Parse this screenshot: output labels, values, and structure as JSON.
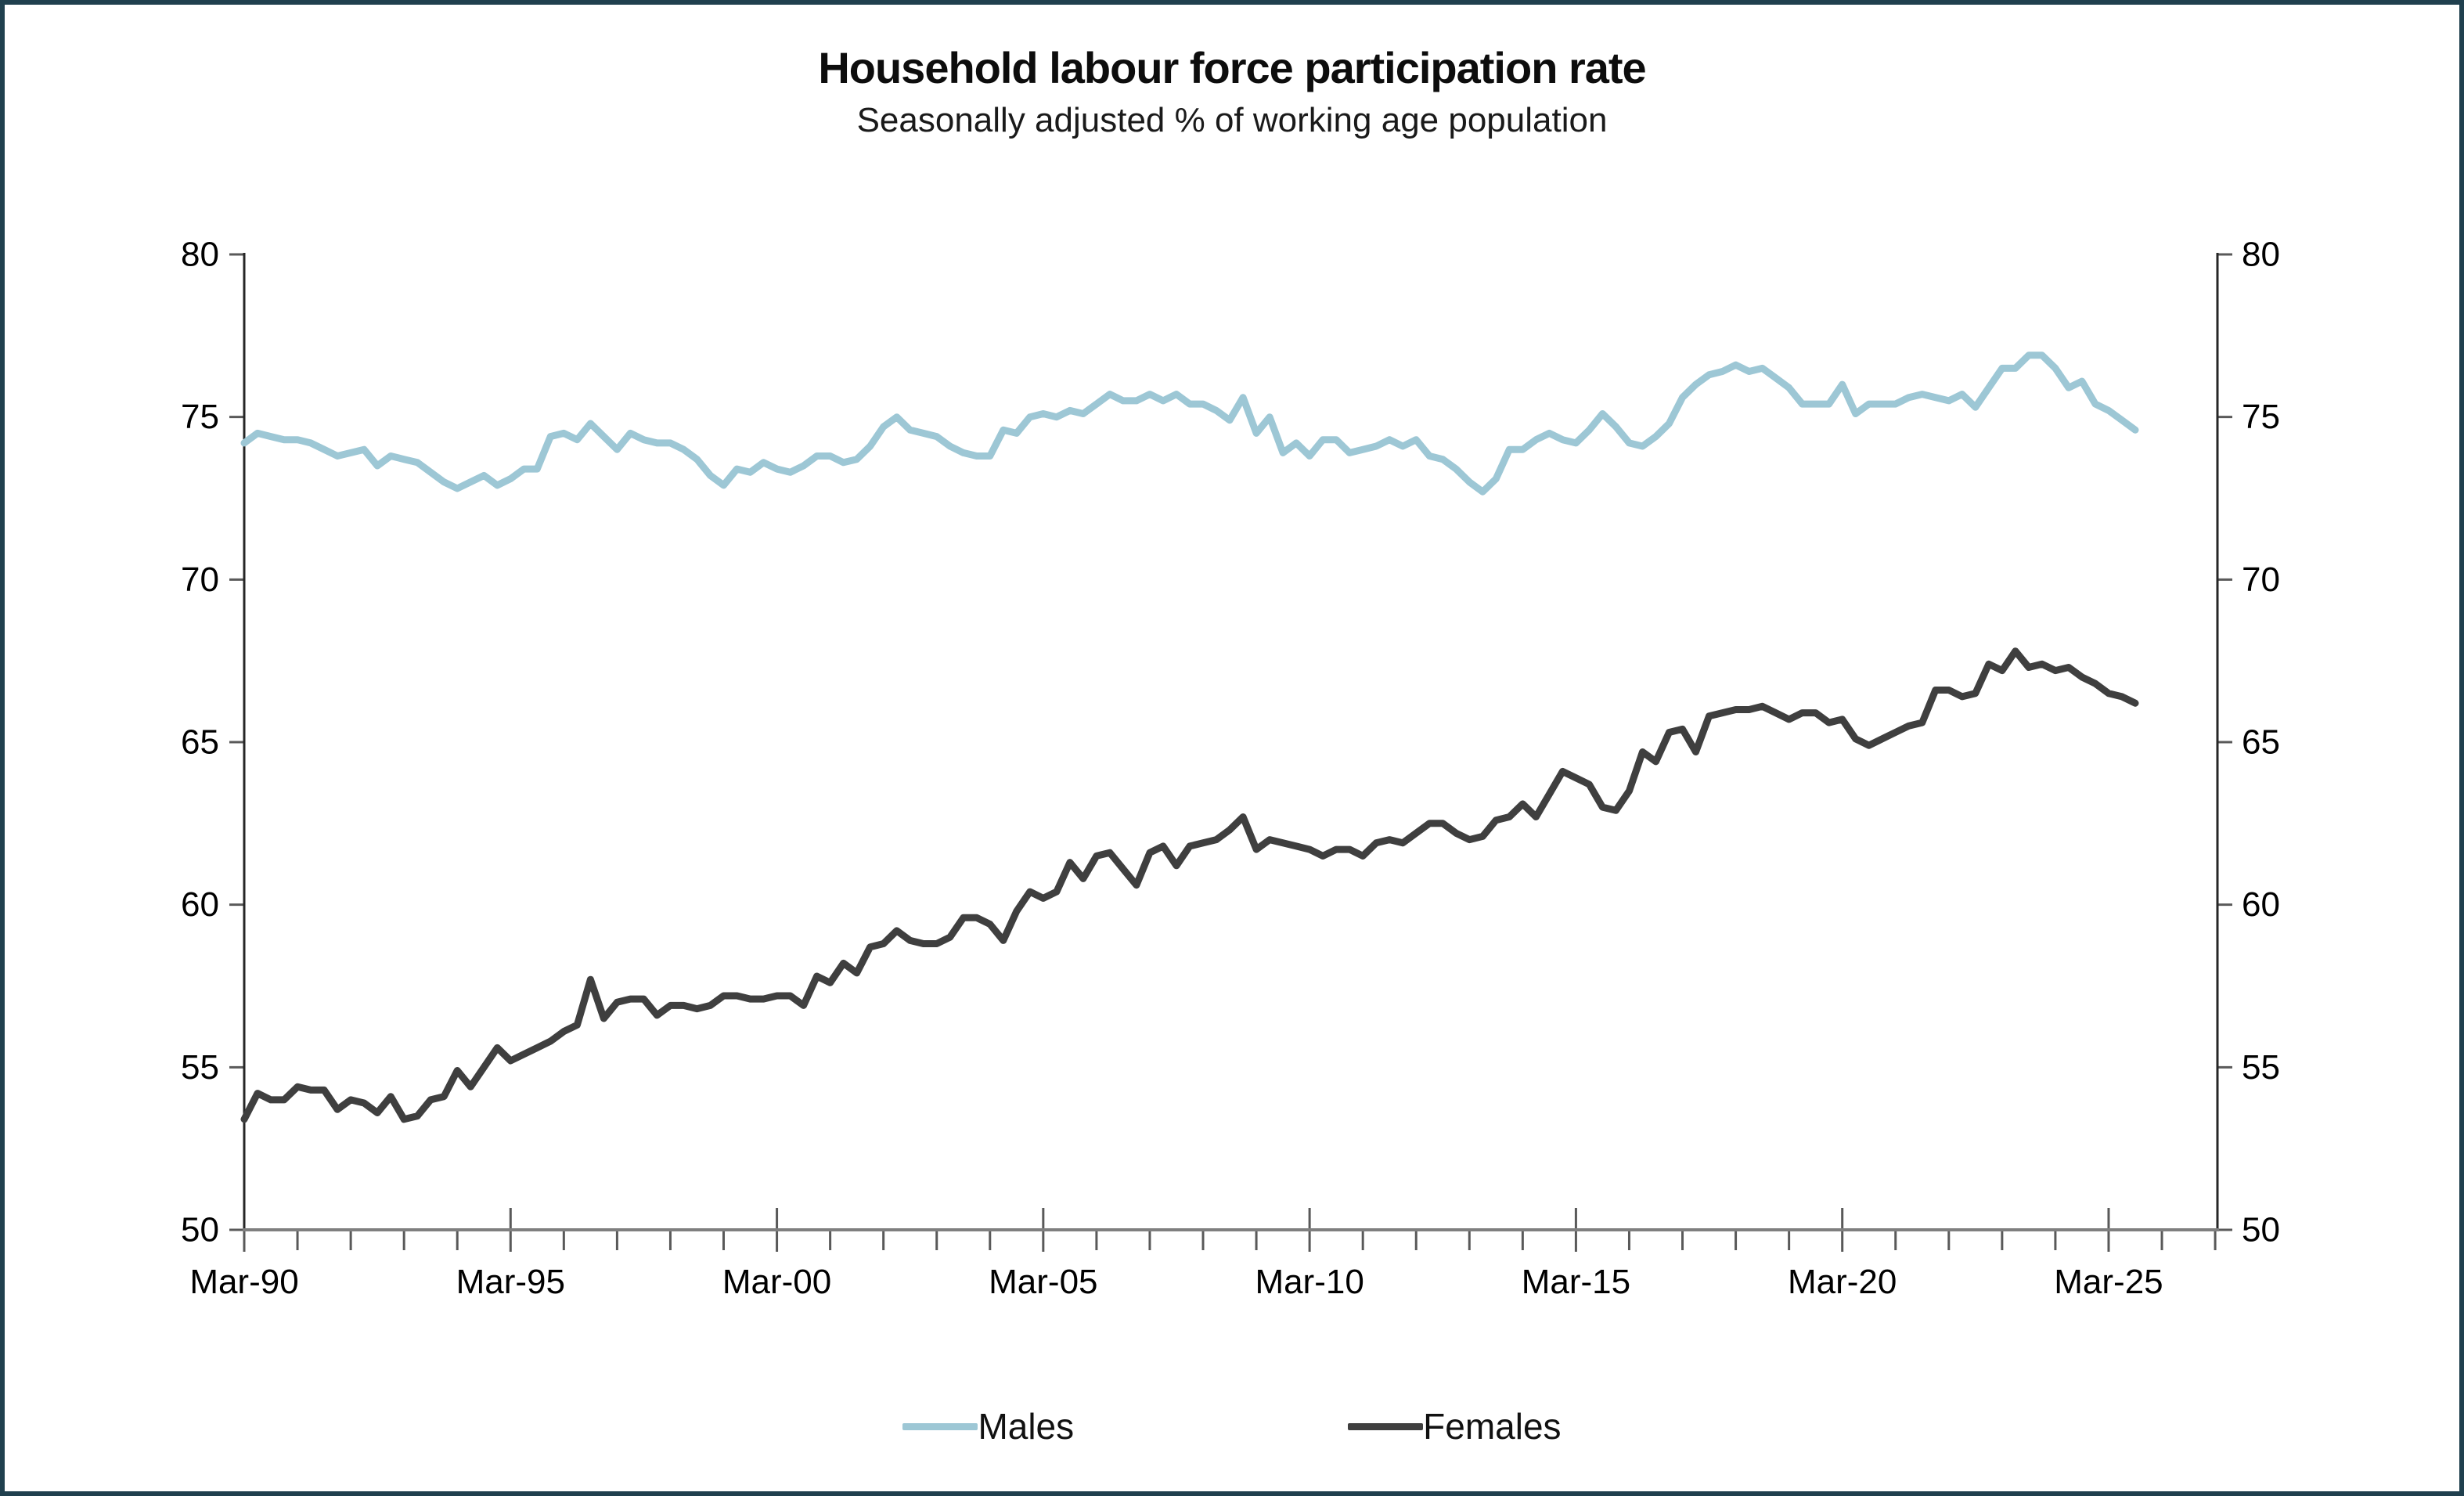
{
  "header": {
    "title": "Household labour force participation rate",
    "subtitle": "Seasonally adjusted % of working age population"
  },
  "legend": {
    "items": [
      {
        "label": "Males",
        "color": "#9dc7d5"
      },
      {
        "label": "Females",
        "color": "#3f3f3f"
      }
    ]
  },
  "colors": {
    "males_line": "#9dc7d5",
    "females_line": "#3f3f3f",
    "frame_border": "#20404e",
    "x_axis_line": "#7f7f7f",
    "y_axis_line": "#262626",
    "tick_mark": "#595959",
    "label_text": "#000000"
  },
  "chart_data": {
    "type": "line",
    "title": "Household labour force participation rate",
    "subtitle": "Seasonally adjusted % of working age population",
    "frequency": "quarterly",
    "x_start": "Mar-1990",
    "x_end": "Sep-2025",
    "x_tick_labels": [
      "Mar-90",
      "Mar-95",
      "Mar-00",
      "Mar-05",
      "Mar-10",
      "Mar-15",
      "Mar-20",
      "Mar-25"
    ],
    "x_major_tick_every_quarters": 20,
    "x_minor_tick_every_quarters": 4,
    "y_ticks": [
      50,
      55,
      60,
      65,
      70,
      75,
      80
    ],
    "ylim": [
      50,
      80
    ],
    "y_axis_sides": "both",
    "grid": false,
    "legend_position": "bottom",
    "series": [
      {
        "name": "Males",
        "color": "#9dc7d5",
        "values": [
          74.2,
          74.5,
          74.4,
          74.3,
          74.3,
          74.2,
          74.0,
          73.8,
          73.9,
          74.0,
          73.5,
          73.8,
          73.7,
          73.6,
          73.3,
          73.0,
          72.8,
          73.0,
          73.2,
          72.9,
          73.1,
          73.4,
          73.4,
          74.4,
          74.5,
          74.3,
          74.8,
          74.4,
          74.0,
          74.5,
          74.3,
          74.2,
          74.2,
          74.0,
          73.7,
          73.2,
          72.9,
          73.4,
          73.3,
          73.6,
          73.4,
          73.3,
          73.5,
          73.8,
          73.8,
          73.6,
          73.7,
          74.1,
          74.7,
          75.0,
          74.6,
          74.5,
          74.4,
          74.1,
          73.9,
          73.8,
          73.8,
          74.6,
          74.5,
          75.0,
          75.1,
          75.0,
          75.2,
          75.1,
          75.4,
          75.7,
          75.5,
          75.5,
          75.7,
          75.5,
          75.7,
          75.4,
          75.4,
          75.2,
          74.9,
          75.6,
          74.5,
          75.0,
          73.9,
          74.2,
          73.8,
          74.3,
          74.3,
          73.9,
          74.0,
          74.1,
          74.3,
          74.1,
          74.3,
          73.8,
          73.7,
          73.4,
          73.0,
          72.7,
          73.1,
          74.0,
          74.0,
          74.3,
          74.5,
          74.3,
          74.2,
          74.6,
          75.1,
          74.7,
          74.2,
          74.1,
          74.4,
          74.8,
          75.6,
          76.0,
          76.3,
          76.4,
          76.6,
          76.4,
          76.5,
          76.2,
          75.9,
          75.4,
          75.4,
          75.4,
          76.0,
          75.1,
          75.4,
          75.4,
          75.4,
          75.6,
          75.7,
          75.6,
          75.5,
          75.7,
          75.3,
          75.9,
          76.5,
          76.5,
          76.9,
          76.9,
          76.5,
          75.9,
          76.1,
          75.4,
          75.2,
          74.9,
          74.6
        ]
      },
      {
        "name": "Females",
        "color": "#3f3f3f",
        "values": [
          53.4,
          54.2,
          54.0,
          54.0,
          54.4,
          54.3,
          54.3,
          53.7,
          54.0,
          53.9,
          53.6,
          54.1,
          53.4,
          53.5,
          54.0,
          54.1,
          54.9,
          54.4,
          55.0,
          55.6,
          55.2,
          55.4,
          55.6,
          55.8,
          56.1,
          56.3,
          57.7,
          56.5,
          57.0,
          57.1,
          57.1,
          56.6,
          56.9,
          56.9,
          56.8,
          56.9,
          57.2,
          57.2,
          57.1,
          57.1,
          57.2,
          57.2,
          56.9,
          57.8,
          57.6,
          58.2,
          57.9,
          58.7,
          58.8,
          59.2,
          58.9,
          58.8,
          58.8,
          59.0,
          59.6,
          59.6,
          59.4,
          58.9,
          59.8,
          60.4,
          60.2,
          60.4,
          61.3,
          60.8,
          61.5,
          61.6,
          61.1,
          60.6,
          61.6,
          61.8,
          61.2,
          61.8,
          61.9,
          62.0,
          62.3,
          62.7,
          61.7,
          62.0,
          61.9,
          61.8,
          61.7,
          61.5,
          61.7,
          61.7,
          61.5,
          61.9,
          62.0,
          61.9,
          62.2,
          62.5,
          62.5,
          62.2,
          62.0,
          62.1,
          62.6,
          62.7,
          63.1,
          62.7,
          63.4,
          64.1,
          63.9,
          63.7,
          63.0,
          62.9,
          63.5,
          64.7,
          64.4,
          65.3,
          65.4,
          64.7,
          65.8,
          65.9,
          66.0,
          66.0,
          66.1,
          65.9,
          65.7,
          65.9,
          65.9,
          65.6,
          65.7,
          65.1,
          64.9,
          65.1,
          65.3,
          65.5,
          65.6,
          66.6,
          66.6,
          66.4,
          66.5,
          67.4,
          67.2,
          67.8,
          67.3,
          67.4,
          67.2,
          67.3,
          67.0,
          66.8,
          66.5,
          66.4,
          66.2
        ]
      }
    ]
  }
}
